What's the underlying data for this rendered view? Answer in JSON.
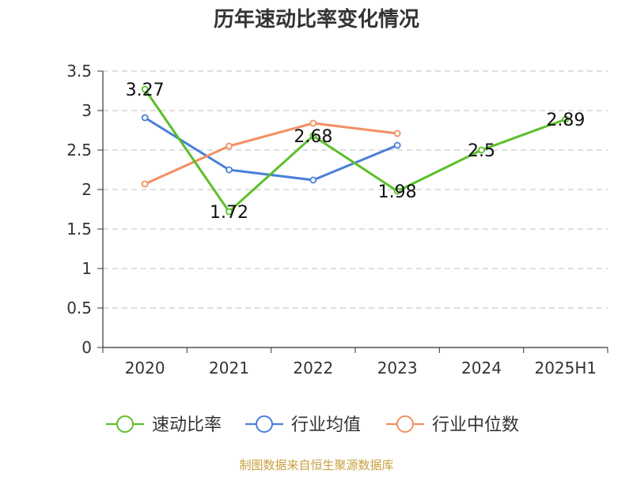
{
  "title": "历年速动比率变化情况",
  "source_note": "制图数据来自恒生聚源数据库",
  "chart_data": {
    "type": "line",
    "title": "历年速动比率变化情况",
    "categories": [
      "2020",
      "2021",
      "2022",
      "2023",
      "2024",
      "2025H1"
    ],
    "y_ticks": [
      "0",
      "0.5",
      "1",
      "1.5",
      "2",
      "2.5",
      "3",
      "3.5"
    ],
    "ylim": [
      0,
      3.5
    ],
    "grid": true,
    "legend_position": "bottom",
    "series": [
      {
        "name": "速动比率",
        "color": "#5cbf2a",
        "values": [
          3.27,
          1.72,
          2.68,
          1.98,
          2.5,
          2.89
        ],
        "labels": [
          "3.27",
          "1.72",
          "2.68",
          "1.98",
          "2.5",
          "2.89"
        ]
      },
      {
        "name": "行业均值",
        "color": "#4a7fd8",
        "values": [
          2.91,
          2.25,
          2.12,
          2.56,
          null,
          null
        ]
      },
      {
        "name": "行业中位数",
        "color": "#f39063",
        "values": [
          2.07,
          2.55,
          2.84,
          2.71,
          null,
          null
        ]
      }
    ]
  }
}
